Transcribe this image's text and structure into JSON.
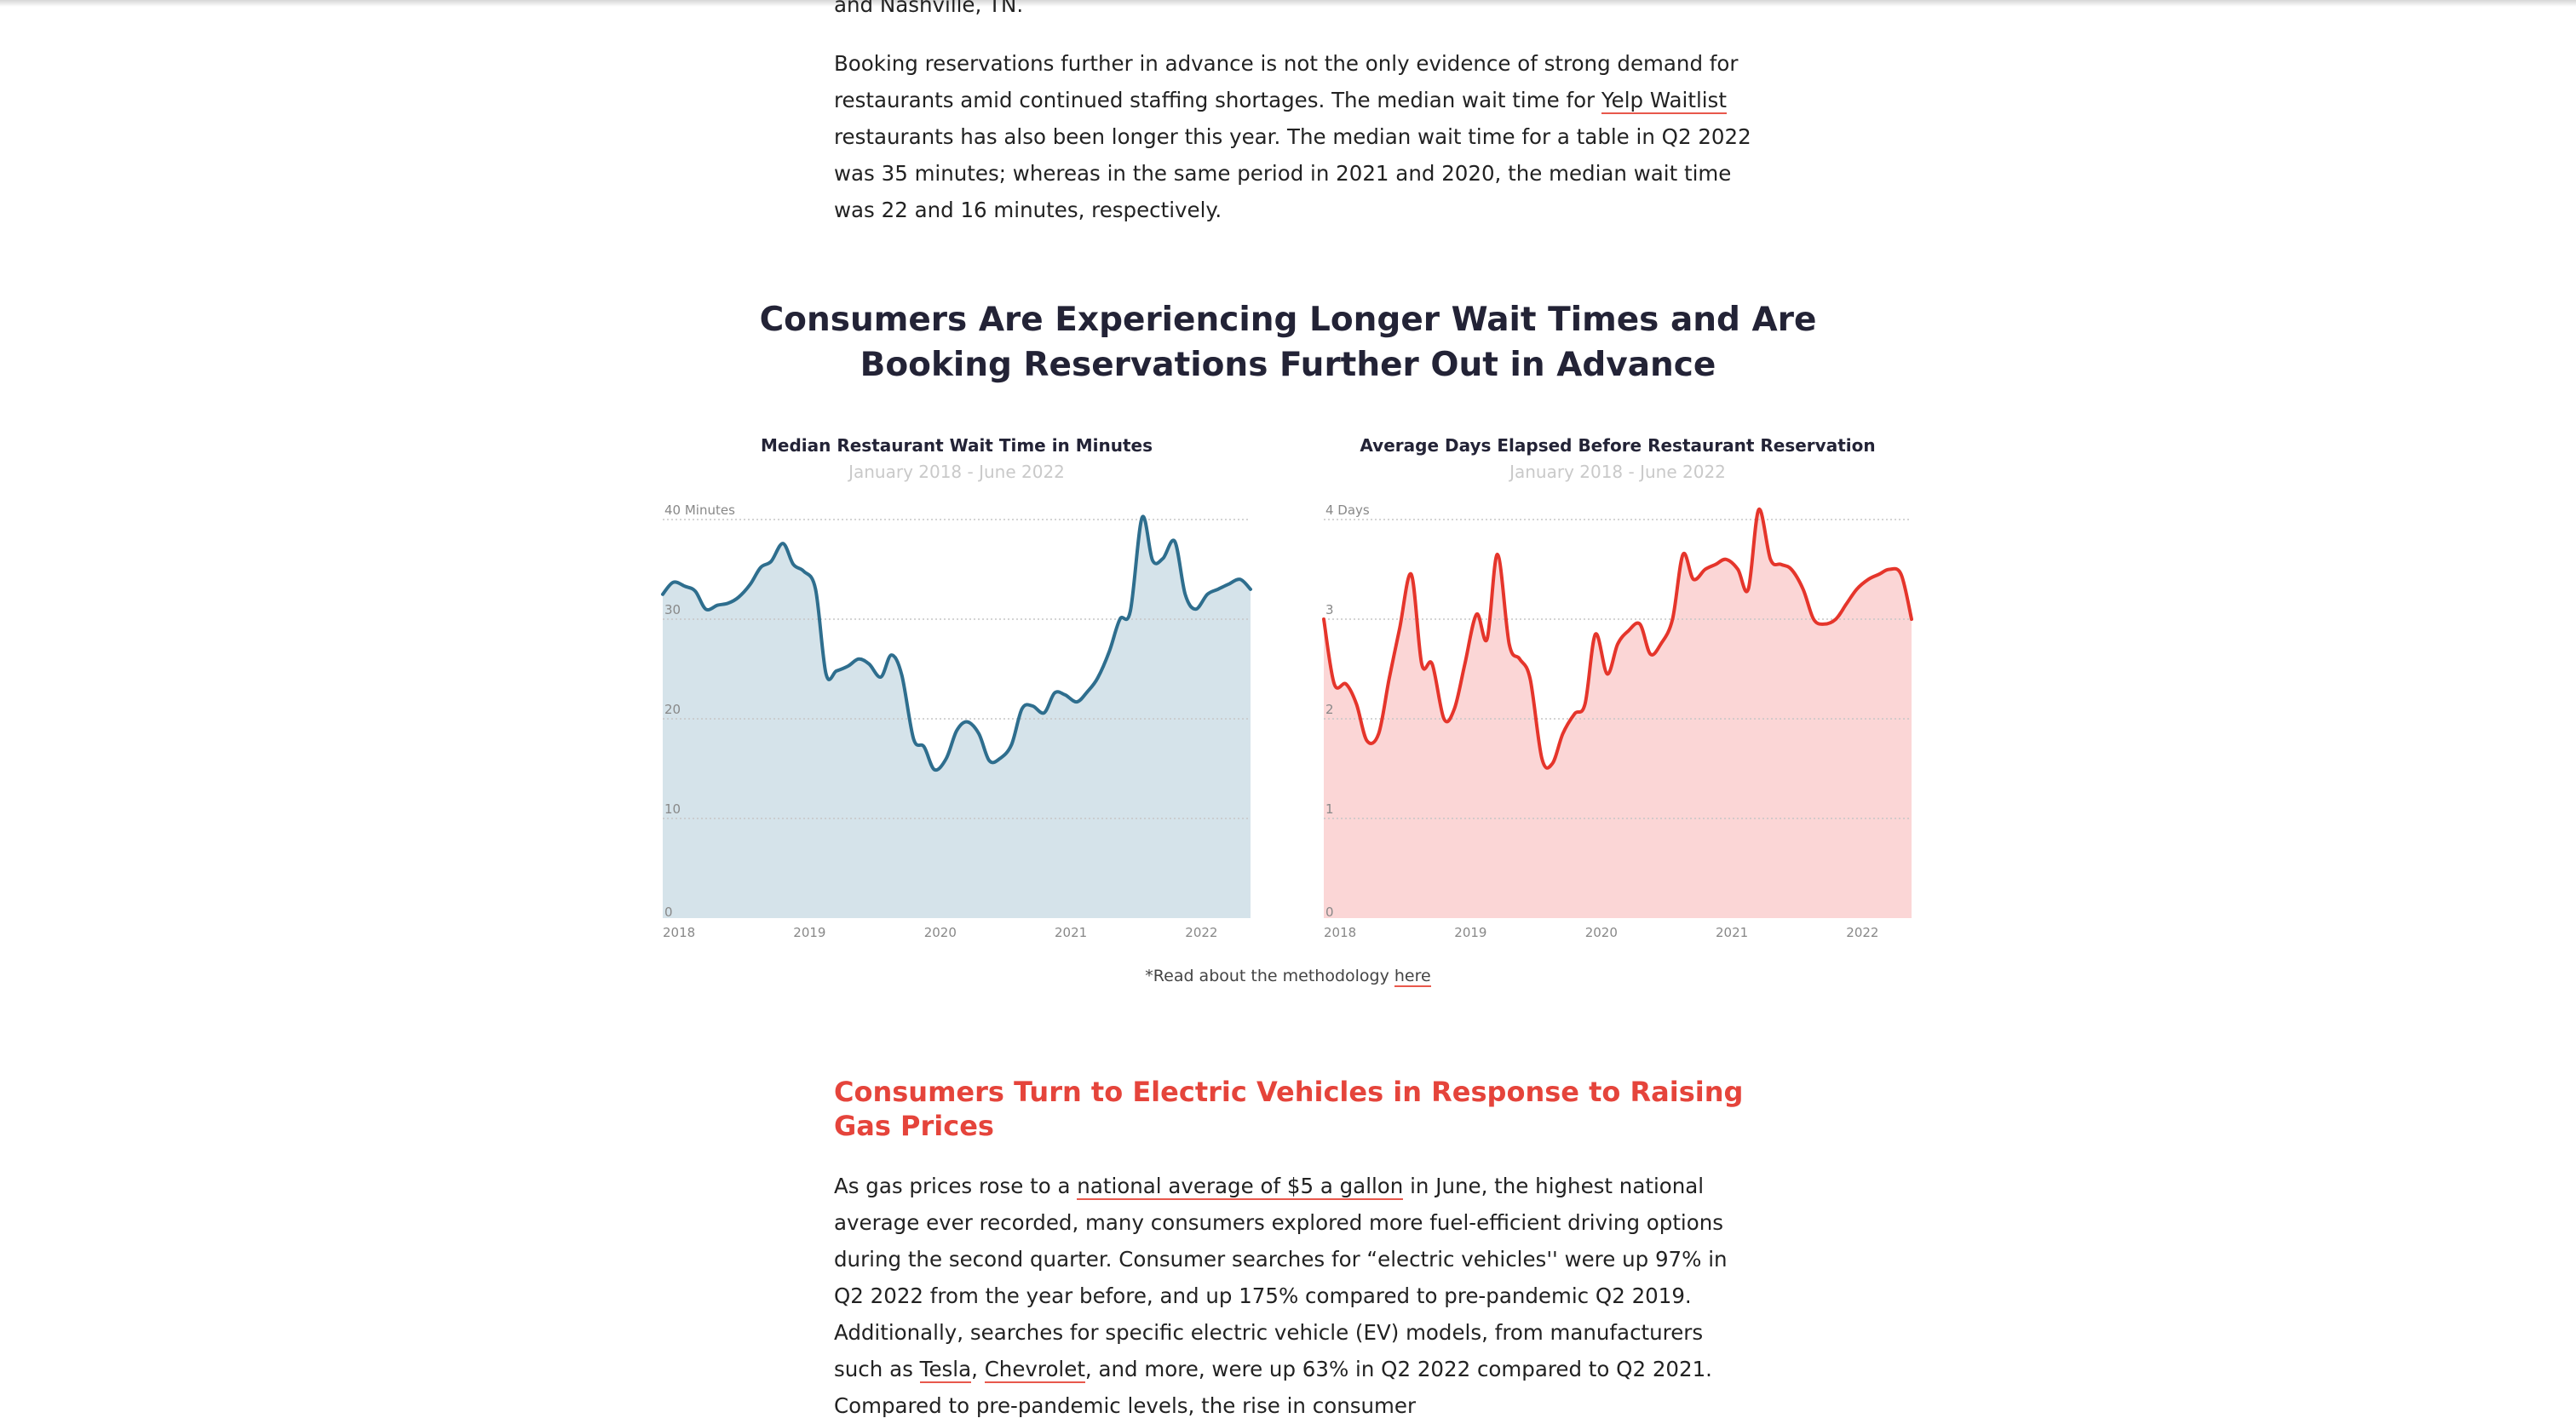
{
  "article": {
    "paragraph_top_tail": "and Nashville, TN.",
    "paragraph_wait": {
      "before_link": "Booking reservations further in advance is not the only evidence of strong demand for restaurants amid continued staffing shortages. The median wait time for ",
      "link": "Yelp Waitlist",
      "after_link": " restaurants has also been longer this year. The median wait time for a table in Q2 2022 was 35 minutes; whereas in the same period in 2021 and 2020, the median wait time was 22 and 16 minutes, respectively."
    },
    "section_title_line1": "Consumers Are Experiencing Longer Wait Times and Are",
    "section_title_line2": "Booking Reservations Further Out in Advance",
    "methodology_prefix": "*Read about the methodology ",
    "methodology_link": "here",
    "subheading": "Consumers Turn to Electric Vehicles in Response to Raising Gas Prices",
    "paragraph_ev": {
      "s1": "As gas prices rose to a ",
      "link_gas": "national average of $5 a gallon",
      "s2": " in June, the highest national average ever recorded, many consumers explored more fuel-efficient driving options during the second quarter. Consumer searches for “electric vehicles'' were up 97% in Q2 2022 from the year before, and up 175% compared to pre-pandemic Q2 2019. Additionally, searches for specific electric vehicle (EV) models, from manufacturers such as ",
      "link_tesla": "Tesla",
      "s3": ", ",
      "link_chevrolet": "Chevrolet",
      "s4": ", and more, were up 63% in Q2 2022 compared to Q2 2021. Compared to pre-pandemic levels, the rise in consumer"
    }
  },
  "colors": {
    "wait_line": "#2e6e8e",
    "wait_fill": "#d5e3ea",
    "days_line": "#e5352b",
    "days_fill": "#fbd6d6",
    "link_underline": "#e8584c",
    "subheading": "#e5443b"
  },
  "chart_data": [
    {
      "type": "area",
      "title": "Median Restaurant Wait Time in Minutes",
      "subtitle": "January 2018 - June 2022",
      "y_unit_label": "40 Minutes",
      "y_tick_labels": [
        "0",
        "10",
        "20",
        "30",
        "40 Minutes"
      ],
      "ylim": [
        0,
        40
      ],
      "x_ticks": [
        "2018",
        "2019",
        "2020",
        "2021",
        "2022"
      ],
      "x_tick_years": [
        2018,
        2019,
        2020,
        2021,
        2022
      ],
      "grid": true,
      "x": [
        2018.0,
        2018.08,
        2018.17,
        2018.25,
        2018.33,
        2018.42,
        2018.5,
        2018.58,
        2018.67,
        2018.75,
        2018.83,
        2018.92,
        2019.0,
        2019.08,
        2019.17,
        2019.25,
        2019.33,
        2019.42,
        2019.5,
        2019.58,
        2019.67,
        2019.75,
        2019.83,
        2019.92,
        2020.0,
        2020.08,
        2020.17,
        2020.25,
        2020.33,
        2020.42,
        2020.5,
        2020.58,
        2020.67,
        2020.75,
        2020.83,
        2020.92,
        2021.0,
        2021.08,
        2021.17,
        2021.25,
        2021.33,
        2021.42,
        2021.5,
        2021.58,
        2021.67,
        2021.75,
        2021.83,
        2021.92,
        2022.0,
        2022.08,
        2022.17,
        2022.25,
        2022.33,
        2022.42,
        2022.5
      ],
      "values": [
        32.5,
        33.7,
        33.3,
        32.8,
        31.0,
        31.4,
        31.6,
        32.2,
        33.5,
        35.2,
        35.8,
        37.6,
        35.5,
        34.8,
        33.0,
        24.5,
        24.8,
        25.3,
        26.0,
        25.5,
        24.2,
        26.4,
        24.4,
        18.0,
        17.2,
        14.9,
        16.0,
        18.8,
        19.7,
        18.5,
        15.8,
        16.0,
        17.4,
        21.0,
        21.3,
        20.6,
        22.6,
        22.4,
        21.7,
        22.7,
        24.1,
        26.8,
        30.0,
        30.8,
        40.2,
        35.9,
        36.1,
        37.8,
        32.5,
        31.0,
        32.5,
        33.0,
        33.5,
        34.0,
        33.0
      ],
      "xlim": [
        2018.0,
        2022.5
      ]
    },
    {
      "type": "area",
      "title": "Average Days Elapsed Before Restaurant Reservation",
      "subtitle": "January 2018 - June 2022",
      "y_unit_label": "4 Days",
      "y_tick_labels": [
        "0",
        "1",
        "2",
        "3",
        "4 Days"
      ],
      "ylim": [
        0,
        4
      ],
      "x_ticks": [
        "2018",
        "2019",
        "2020",
        "2021",
        "2022"
      ],
      "x_tick_years": [
        2018,
        2019,
        2020,
        2021,
        2022
      ],
      "grid": true,
      "x": [
        2018.0,
        2018.08,
        2018.17,
        2018.25,
        2018.33,
        2018.42,
        2018.5,
        2018.58,
        2018.67,
        2018.75,
        2018.83,
        2018.92,
        2019.0,
        2019.08,
        2019.17,
        2019.25,
        2019.33,
        2019.42,
        2019.5,
        2019.58,
        2019.67,
        2019.75,
        2019.83,
        2019.92,
        2020.0,
        2020.08,
        2020.17,
        2020.25,
        2020.33,
        2020.42,
        2020.5,
        2020.58,
        2020.67,
        2020.75,
        2020.83,
        2020.92,
        2021.0,
        2021.08,
        2021.17,
        2021.25,
        2021.33,
        2021.42,
        2021.5,
        2021.58,
        2021.67,
        2021.75,
        2021.83,
        2021.92,
        2022.0,
        2022.08,
        2022.17,
        2022.25,
        2022.33,
        2022.42,
        2022.5
      ],
      "values": [
        3.0,
        2.35,
        2.35,
        2.15,
        1.78,
        1.85,
        2.4,
        2.9,
        3.45,
        2.55,
        2.55,
        2.0,
        2.1,
        2.55,
        3.05,
        2.8,
        3.65,
        2.75,
        2.6,
        2.4,
        1.6,
        1.55,
        1.85,
        2.05,
        2.15,
        2.85,
        2.45,
        2.75,
        2.88,
        2.95,
        2.65,
        2.75,
        3.0,
        3.65,
        3.4,
        3.5,
        3.55,
        3.6,
        3.5,
        3.3,
        4.1,
        3.6,
        3.55,
        3.5,
        3.3,
        3.0,
        2.95,
        3.0,
        3.15,
        3.3,
        3.4,
        3.45,
        3.5,
        3.45,
        3.0
      ],
      "xlim": [
        2018.0,
        2022.5
      ]
    }
  ]
}
